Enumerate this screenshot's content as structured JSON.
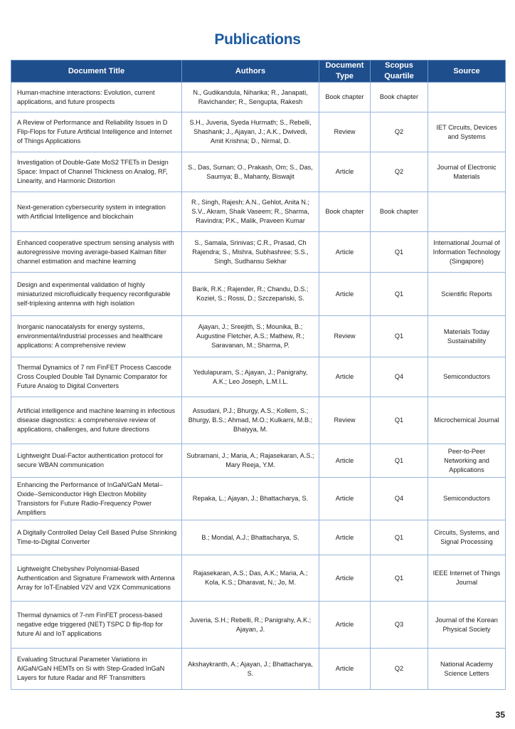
{
  "page_title": "Publications",
  "columns": [
    "Document Title",
    "Authors",
    "Document Type",
    "Scopus Quartile",
    "Source"
  ],
  "rows": [
    {
      "title": "Human-machine interactions: Evolution, current applications, and future prospects",
      "authors": "N., Gudikandula, Niharika; R., Janapati, Ravichander; R., Sengupta, Rakesh",
      "type": "Book chapter",
      "quartile": "Book chapter",
      "source": ""
    },
    {
      "title": "A Review of Performance and Reliability Issues in D Flip-Flops for Future Artificial Intelligence and Internet of Things Applications",
      "authors": "S.H., Juveria, Syeda Hurmath; S., Rebelli, Shashank; J., Ajayan, J.; A.K., Dwivedi, Amit Krishna; D., Nirmal, D.",
      "type": "Review",
      "quartile": "Q2",
      "source": "IET Circuits, Devices and Systems"
    },
    {
      "title": "Investigation of Double-Gate MoS2 TFETs in Design Space: Impact of Channel Thickness on Analog, RF, Linearity, and Harmonic Distortion",
      "authors": "S., Das, Suman; O., Prakash, Om; S., Das, Saumya; B., Mahanty, Biswajit",
      "type": "Article",
      "quartile": "Q2",
      "source": "Journal of Electronic Materials"
    },
    {
      "title": "Next-generation cybersecurity system in integration with Artificial Intelligence and blockchain",
      "authors": "R., Singh, Rajesh; A.N., Gehlot, Anita N.; S.V., Akram, Shaik Vaseem; R., Sharma, Ravindra; P.K., Malik, Praveen Kumar",
      "type": "Book chapter",
      "quartile": "Book chapter",
      "source": ""
    },
    {
      "title": "Enhanced cooperative spectrum sensing analysis with autoregressive moving average-based Kalman filter channel estimation and machine learning",
      "authors": "S., Samala, Srinivas; C.R., Prasad, Ch Rajendra; S., Mishra, Subhashree; S.S., Singh, Sudhansu Sekhar",
      "type": "Article",
      "quartile": "Q1",
      "source": "International Journal of Information Technology (Singapore)"
    },
    {
      "title": "Design and experimental validation of highly miniaturized microfluidically frequency reconfigurable self-triplexing antenna with high isolation",
      "authors": "Barik, R.K.; Rajender, R.; Chandu, D.S.; Kozieł, S.; Rossi, D.; Szczepański, S.",
      "type": "Article",
      "quartile": "Q1",
      "source": "Scientific Reports"
    },
    {
      "title": "Inorganic nanocatalysts for energy systems, environmental/industrial processes and healthcare applications: A comprehensive review",
      "authors": "Ajayan, J.; Sreejith, S.; Mounika, B.; Augustine Fletcher, A.S.; Mathew, R.; Saravanan, M.; Sharma, P.",
      "type": "Review",
      "quartile": "Q1",
      "source": "Materials Today Sustainability"
    },
    {
      "title": "Thermal Dynamics of 7 nm FinFET Process Cascode Cross Coupled Double Tail Dynamic Comparator for Future Analog to Digital Converters",
      "authors": "Yedulapuram, S.; Ajayan, J.; Panigrahy, A.K.; Leo Joseph, L.M.I.L.",
      "type": "Article",
      "quartile": "Q4",
      "source": "Semiconductors"
    },
    {
      "title": "Artificial intelligence and machine learning in infectious disease diagnostics: a comprehensive review of applications, challenges, and future directions",
      "authors": "Assudani, P.J.; Bhurgy, A.S.; Kollem, S.; Bhurgy, B.S.; Ahmad, M.O.; Kulkarni, M.B.; Bhaiyya, M.",
      "type": "Review",
      "quartile": "Q1",
      "source": "Microchemical Journal"
    },
    {
      "title": "Lightweight Dual-Factor authentication protocol for secure WBAN communication",
      "authors": "Subramani, J.; Maria, A.; Rajasekaran, A.S.; Mary Reeja, Y.M.",
      "type": "Article",
      "quartile": "Q1",
      "source": "Peer-to-Peer Networking and Applications"
    },
    {
      "title": "Enhancing the Performance of InGaN/GaN Metal–Oxide–Semiconductor High Electron Mobility Transistors for Future Radio-Frequency Power Amplifiers",
      "authors": "Repaka, L.; Ajayan, J.; Bhattacharya, S.",
      "type": "Article",
      "quartile": "Q4",
      "source": "Semiconductors"
    },
    {
      "title": "A Digitally Controlled Delay Cell Based Pulse Shrinking Time-to-Digital Converter",
      "authors": "B.; Mondal, A.J.; Bhattacharya, S.",
      "type": "Article",
      "quartile": "Q1",
      "source": "Circuits, Systems, and Signal Processing"
    },
    {
      "title": "Lightweight Chebyshev Polynomial-Based Authentication and Signature Framework with Antenna Array for IoT-Enabled V2V and V2X Communications",
      "authors": "Rajasekaran, A.S.; Das, A.K.; Maria, A.; Kola, K.S.; Dharavat, N.; Jo, M.",
      "type": "Article",
      "quartile": "Q1",
      "source": "IEEE Internet of Things Journal"
    },
    {
      "title": "Thermal dynamics of 7-nm FinFET process-based negative edge triggered (NET) TSPC D flip-flop for future AI and IoT applications",
      "authors": "Juveria, S.H.; Rebelli, R.; Panigrahy, A.K.; Ajayan, J.",
      "type": "Article",
      "quartile": "Q3",
      "source": "Journal of the Korean Physical Society"
    },
    {
      "title": "Evaluating Structural Parameter Variations in AlGaN/GaN HEMTs on Si with Step-Graded InGaN Layers for future Radar and RF Transmitters",
      "authors": "Akshaykranth, A.; Ajayan, J.; Bhattacharya, S.",
      "type": "Article",
      "quartile": "Q2",
      "source": "National Academy Science Letters"
    }
  ],
  "page_number": "35",
  "colors": {
    "title": "#1c5aa0",
    "header_bg": "#1f4e8c",
    "border": "#9ab6dc"
  }
}
